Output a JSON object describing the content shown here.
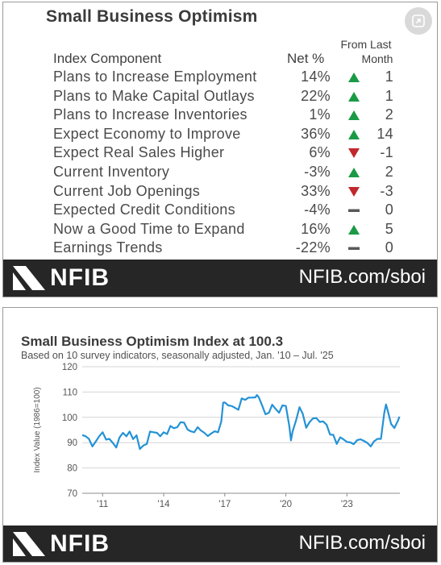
{
  "table_card": {
    "title": "Small Business Optimism",
    "header_component": "Index Component",
    "header_net": "Net %",
    "header_from_line1": "From Last",
    "header_from_line2": "Month",
    "rows": [
      {
        "component": "Plans to Increase Employment",
        "net": "14%",
        "direction": "up",
        "change": "1"
      },
      {
        "component": "Plans to Make Capital Outlays",
        "net": "22%",
        "direction": "up",
        "change": "1"
      },
      {
        "component": "Plans to Increase Inventories",
        "net": "1%",
        "direction": "up",
        "change": "2"
      },
      {
        "component": "Expect Economy to Improve",
        "net": "36%",
        "direction": "up",
        "change": "14"
      },
      {
        "component": "Expect Real Sales Higher",
        "net": "6%",
        "direction": "down",
        "change": "-1"
      },
      {
        "component": "Current Inventory",
        "net": "-3%",
        "direction": "up",
        "change": "2"
      },
      {
        "component": "Current Job Openings",
        "net": "33%",
        "direction": "down",
        "change": "-3"
      },
      {
        "component": "Expected Credit Conditions",
        "net": "-4%",
        "direction": "flat",
        "change": "0"
      },
      {
        "component": "Now a Good Time to Expand",
        "net": "16%",
        "direction": "up",
        "change": "5"
      },
      {
        "component": "Earnings Trends",
        "net": "-22%",
        "direction": "flat",
        "change": "0"
      }
    ],
    "logo_text": "NFIB",
    "url": "NFIB.com/sboi"
  },
  "chart_card": {
    "title": "Small Business Optimism Index at 100.3",
    "subtitle": "Based on 10 survey indicators, seasonally adjusted,  Jan. '10 – Jul. '25",
    "logo_text": "NFIB",
    "url": "NFIB.com/sboi"
  },
  "colors": {
    "up": "#1a9a45",
    "down": "#c0282d",
    "flat": "#595959",
    "line": "#2492d6",
    "footer": "#262626"
  },
  "icons": {
    "expand": "expand-icon",
    "logo": "nfib-logo-mark"
  },
  "chart_data": {
    "type": "line",
    "title": "Small Business Optimism Index at 100.3",
    "subtitle": "Based on 10 survey indicators, seasonally adjusted,  Jan. '10 – Jul. '25",
    "xlabel": "",
    "ylabel": "Index Value (1986=100)",
    "ylim": [
      70,
      120
    ],
    "yticks": [
      70,
      80,
      90,
      100,
      110,
      120
    ],
    "xlim": [
      2010.0,
      2025.6
    ],
    "xticks": [
      2011,
      2014,
      2017,
      2020,
      2023
    ],
    "xtick_labels": [
      "'11",
      "'14",
      "'17",
      "'20",
      "'23"
    ],
    "grid": "horizontal",
    "series": [
      {
        "x": [
          2010.0,
          2010.17,
          2010.33,
          2010.5,
          2010.67,
          2010.83,
          2011.0,
          2011.17,
          2011.33,
          2011.5,
          2011.67,
          2011.83,
          2012.0,
          2012.17,
          2012.33,
          2012.5,
          2012.67,
          2012.83,
          2013.0,
          2013.17,
          2013.33,
          2013.5,
          2013.67,
          2013.83,
          2014.0,
          2014.17,
          2014.33,
          2014.5,
          2014.67,
          2014.83,
          2015.0,
          2015.17,
          2015.33,
          2015.5,
          2015.67,
          2015.83,
          2016.0,
          2016.17,
          2016.33,
          2016.5,
          2016.67,
          2016.83,
          2016.92,
          2017.0,
          2017.17,
          2017.33,
          2017.5,
          2017.67,
          2017.83,
          2018.0,
          2018.17,
          2018.33,
          2018.5,
          2018.58,
          2018.67,
          2018.83,
          2019.0,
          2019.17,
          2019.33,
          2019.5,
          2019.67,
          2019.83,
          2020.0,
          2020.17,
          2020.25,
          2020.33,
          2020.5,
          2020.67,
          2020.83,
          2021.0,
          2021.17,
          2021.33,
          2021.5,
          2021.67,
          2021.83,
          2022.0,
          2022.17,
          2022.33,
          2022.5,
          2022.67,
          2022.83,
          2023.0,
          2023.17,
          2023.33,
          2023.5,
          2023.67,
          2023.83,
          2024.0,
          2024.17,
          2024.33,
          2024.5,
          2024.67,
          2024.83,
          2024.92,
          2025.0,
          2025.17,
          2025.33,
          2025.5,
          2025.58
        ],
        "y": [
          93.0,
          92.5,
          91.5,
          88.5,
          90.5,
          92.5,
          94.1,
          91.2,
          91.5,
          89.9,
          88.1,
          92.0,
          93.9,
          92.5,
          94.4,
          91.4,
          92.9,
          87.5,
          88.9,
          89.5,
          94.4,
          94.1,
          93.9,
          92.5,
          94.1,
          93.4,
          96.6,
          95.7,
          96.1,
          98.1,
          97.9,
          95.2,
          94.5,
          94.1,
          96.1,
          94.8,
          93.9,
          92.6,
          93.6,
          94.5,
          94.1,
          98.4,
          105.8,
          105.9,
          104.7,
          104.5,
          103.8,
          103.0,
          107.5,
          106.9,
          107.8,
          107.8,
          107.9,
          108.8,
          107.9,
          104.8,
          101.2,
          101.8,
          105.0,
          103.3,
          101.8,
          104.7,
          104.5,
          96.4,
          90.9,
          94.4,
          98.8,
          104.0,
          101.4,
          95.9,
          98.2,
          99.6,
          99.7,
          98.2,
          98.4,
          97.1,
          93.2,
          93.1,
          89.5,
          92.1,
          91.3,
          90.3,
          90.1,
          89.4,
          91.0,
          91.3,
          90.7,
          89.9,
          88.5,
          90.5,
          91.5,
          91.5,
          101.7,
          105.1,
          102.8,
          97.4,
          95.8,
          98.6,
          100.3
        ]
      }
    ]
  }
}
